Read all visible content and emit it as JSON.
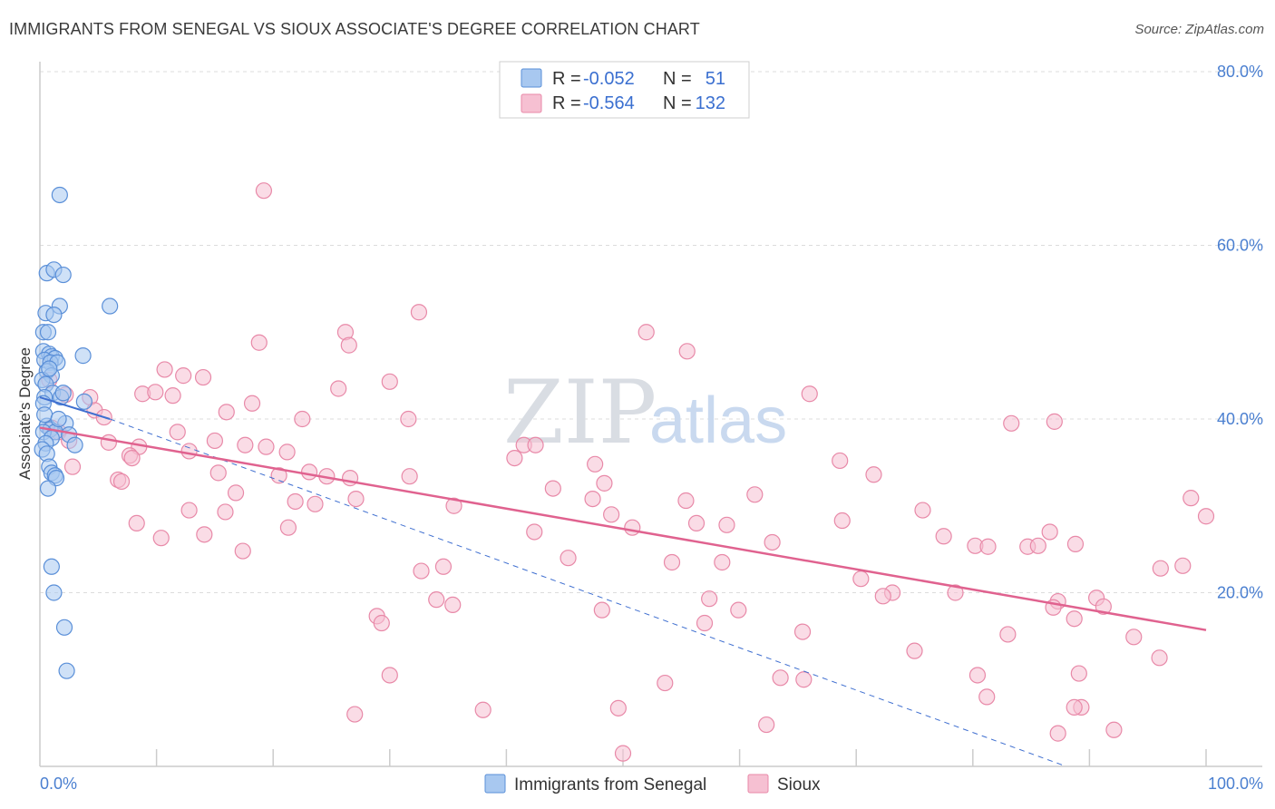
{
  "title": "IMMIGRANTS FROM SENEGAL VS SIOUX ASSOCIATE'S DEGREE CORRELATION CHART",
  "source": "Source: ZipAtlas.com",
  "watermark": {
    "zip": "ZIP",
    "atlas": "atlas"
  },
  "colors": {
    "blue_fill": "#a8c8f0",
    "blue_stroke": "#5a8fd8",
    "blue_line": "#3f6fd0",
    "pink_fill": "#f6c0d2",
    "pink_stroke": "#e889a8",
    "pink_line": "#e0628f",
    "grid": "#dcdcdc",
    "tick_text": "#4a7fd0"
  },
  "legend": [
    {
      "r_label": "R =",
      "r_value": "-0.052",
      "n_label": "N =",
      "n_value": "51"
    },
    {
      "r_label": "R =",
      "r_value": "-0.564",
      "n_label": "N =",
      "n_value": "132"
    }
  ],
  "chart_data": {
    "type": "scatter",
    "title": "IMMIGRANTS FROM SENEGAL VS SIOUX ASSOCIATE'S DEGREE CORRELATION CHART",
    "xlabel": "",
    "ylabel": "Associate's Degree",
    "xlim": [
      0,
      100
    ],
    "ylim": [
      0,
      80
    ],
    "x_tick_labels": [
      "0.0%",
      "100.0%"
    ],
    "y_ticks": [
      20,
      40,
      60,
      80
    ],
    "y_tick_labels": [
      "20.0%",
      "40.0%",
      "60.0%",
      "80.0%"
    ],
    "legend": [
      "Immigrants from Senegal",
      "Sioux"
    ],
    "series": [
      {
        "name": "Immigrants from Senegal",
        "r": -0.052,
        "n": 51,
        "trend_solid": [
          [
            0,
            42.5
          ],
          [
            6,
            40.0
          ]
        ],
        "trend_dashed": [
          [
            6,
            40.0
          ],
          [
            88,
            0
          ]
        ],
        "points": [
          [
            1.7,
            65.8
          ],
          [
            0.6,
            56.8
          ],
          [
            1.2,
            57.2
          ],
          [
            2.0,
            56.6
          ],
          [
            1.7,
            53.0
          ],
          [
            6.0,
            53.0
          ],
          [
            0.5,
            52.2
          ],
          [
            1.2,
            52.0
          ],
          [
            0.3,
            50.0
          ],
          [
            0.7,
            50.0
          ],
          [
            0.3,
            47.8
          ],
          [
            0.8,
            47.5
          ],
          [
            1.0,
            47.2
          ],
          [
            1.3,
            47.0
          ],
          [
            0.4,
            46.8
          ],
          [
            0.9,
            46.5
          ],
          [
            1.5,
            46.5
          ],
          [
            3.7,
            47.3
          ],
          [
            0.6,
            45.5
          ],
          [
            1.0,
            45.0
          ],
          [
            0.2,
            44.5
          ],
          [
            0.5,
            44.0
          ],
          [
            1.1,
            43.0
          ],
          [
            1.8,
            42.5
          ],
          [
            0.4,
            42.5
          ],
          [
            0.3,
            41.8
          ],
          [
            3.8,
            42.0
          ],
          [
            2.2,
            39.5
          ],
          [
            0.6,
            39.2
          ],
          [
            0.9,
            38.8
          ],
          [
            1.3,
            38.5
          ],
          [
            0.3,
            38.5
          ],
          [
            2.5,
            38.2
          ],
          [
            1.0,
            37.8
          ],
          [
            0.5,
            37.2
          ],
          [
            3.0,
            37.0
          ],
          [
            0.2,
            36.5
          ],
          [
            0.6,
            36.0
          ],
          [
            0.8,
            34.5
          ],
          [
            1.0,
            33.8
          ],
          [
            1.3,
            33.5
          ],
          [
            1.4,
            33.2
          ],
          [
            0.7,
            32.0
          ],
          [
            1.0,
            23.0
          ],
          [
            1.2,
            20.0
          ],
          [
            2.1,
            16.0
          ],
          [
            2.3,
            11.0
          ],
          [
            0.4,
            40.5
          ],
          [
            1.6,
            40.0
          ],
          [
            0.8,
            45.8
          ],
          [
            2.0,
            43.0
          ]
        ]
      },
      {
        "name": "Sioux",
        "r": -0.564,
        "n": 132,
        "trend_solid": [
          [
            0,
            39.0
          ],
          [
            100,
            15.7
          ]
        ],
        "points": [
          [
            19.2,
            66.3
          ],
          [
            32.5,
            52.3
          ],
          [
            26.2,
            50.0
          ],
          [
            52.0,
            50.0
          ],
          [
            26.5,
            48.5
          ],
          [
            18.8,
            48.8
          ],
          [
            55.5,
            47.8
          ],
          [
            10.7,
            45.7
          ],
          [
            12.3,
            45.0
          ],
          [
            14.0,
            44.8
          ],
          [
            30.0,
            44.3
          ],
          [
            0.8,
            44.5
          ],
          [
            25.6,
            43.5
          ],
          [
            8.8,
            42.9
          ],
          [
            9.9,
            43.1
          ],
          [
            11.4,
            42.7
          ],
          [
            2.2,
            42.8
          ],
          [
            4.3,
            42.5
          ],
          [
            66.0,
            42.9
          ],
          [
            18.2,
            41.8
          ],
          [
            4.7,
            41.0
          ],
          [
            16.0,
            40.8
          ],
          [
            5.5,
            40.2
          ],
          [
            22.5,
            40.0
          ],
          [
            31.6,
            40.0
          ],
          [
            83.3,
            39.5
          ],
          [
            87.0,
            39.7
          ],
          [
            1.0,
            39.0
          ],
          [
            1.6,
            38.5
          ],
          [
            11.8,
            38.5
          ],
          [
            2.5,
            37.5
          ],
          [
            5.9,
            37.3
          ],
          [
            15.0,
            37.5
          ],
          [
            8.5,
            36.8
          ],
          [
            17.6,
            37.0
          ],
          [
            19.4,
            36.8
          ],
          [
            41.5,
            37.0
          ],
          [
            42.5,
            37.0
          ],
          [
            12.8,
            36.3
          ],
          [
            21.2,
            36.2
          ],
          [
            7.7,
            35.8
          ],
          [
            7.9,
            35.5
          ],
          [
            40.7,
            35.5
          ],
          [
            68.6,
            35.2
          ],
          [
            2.8,
            34.5
          ],
          [
            47.6,
            34.8
          ],
          [
            23.1,
            33.9
          ],
          [
            15.3,
            33.8
          ],
          [
            20.5,
            33.5
          ],
          [
            24.6,
            33.4
          ],
          [
            31.7,
            33.4
          ],
          [
            26.6,
            33.2
          ],
          [
            71.5,
            33.6
          ],
          [
            6.7,
            33.0
          ],
          [
            7.0,
            32.8
          ],
          [
            48.4,
            32.6
          ],
          [
            44.0,
            32.0
          ],
          [
            16.8,
            31.5
          ],
          [
            61.3,
            31.3
          ],
          [
            27.1,
            30.8
          ],
          [
            21.9,
            30.5
          ],
          [
            47.4,
            30.8
          ],
          [
            55.4,
            30.6
          ],
          [
            23.6,
            30.2
          ],
          [
            35.5,
            30.0
          ],
          [
            98.7,
            30.9
          ],
          [
            12.8,
            29.5
          ],
          [
            15.9,
            29.3
          ],
          [
            49.0,
            29.0
          ],
          [
            68.8,
            28.3
          ],
          [
            75.7,
            29.5
          ],
          [
            100.0,
            28.8
          ],
          [
            8.3,
            28.0
          ],
          [
            21.3,
            27.5
          ],
          [
            56.3,
            28.0
          ],
          [
            50.8,
            27.5
          ],
          [
            42.4,
            27.0
          ],
          [
            58.9,
            27.8
          ],
          [
            84.7,
            25.3
          ],
          [
            85.6,
            25.4
          ],
          [
            88.8,
            25.6
          ],
          [
            17.4,
            24.8
          ],
          [
            14.1,
            26.7
          ],
          [
            10.4,
            26.3
          ],
          [
            77.5,
            26.5
          ],
          [
            80.2,
            25.4
          ],
          [
            81.3,
            25.3
          ],
          [
            86.6,
            27.0
          ],
          [
            62.8,
            25.8
          ],
          [
            45.3,
            24.0
          ],
          [
            58.5,
            23.5
          ],
          [
            54.2,
            23.5
          ],
          [
            98.0,
            23.1
          ],
          [
            96.1,
            22.8
          ],
          [
            34.6,
            23.0
          ],
          [
            32.7,
            22.5
          ],
          [
            70.4,
            21.6
          ],
          [
            78.5,
            20.0
          ],
          [
            73.1,
            20.0
          ],
          [
            72.3,
            19.6
          ],
          [
            87.3,
            19.0
          ],
          [
            90.6,
            19.4
          ],
          [
            34.0,
            19.2
          ],
          [
            35.4,
            18.6
          ],
          [
            57.4,
            19.3
          ],
          [
            86.9,
            18.3
          ],
          [
            91.2,
            18.4
          ],
          [
            48.2,
            18.0
          ],
          [
            59.9,
            18.0
          ],
          [
            28.9,
            17.3
          ],
          [
            29.3,
            16.5
          ],
          [
            88.7,
            17.0
          ],
          [
            57.0,
            16.5
          ],
          [
            65.4,
            15.5
          ],
          [
            83.0,
            15.2
          ],
          [
            93.8,
            14.9
          ],
          [
            75.0,
            13.3
          ],
          [
            96.0,
            12.5
          ],
          [
            30.0,
            10.5
          ],
          [
            53.6,
            9.6
          ],
          [
            63.5,
            10.2
          ],
          [
            65.5,
            10.0
          ],
          [
            80.4,
            10.5
          ],
          [
            81.2,
            8.0
          ],
          [
            89.1,
            10.7
          ],
          [
            49.6,
            6.7
          ],
          [
            27.0,
            6.0
          ],
          [
            38.0,
            6.5
          ],
          [
            62.3,
            4.8
          ],
          [
            89.3,
            6.8
          ],
          [
            87.3,
            3.8
          ],
          [
            88.7,
            6.8
          ],
          [
            92.1,
            4.2
          ],
          [
            50.0,
            1.5
          ]
        ]
      }
    ]
  },
  "bottom_legend": [
    "Immigrants from Senegal",
    "Sioux"
  ]
}
